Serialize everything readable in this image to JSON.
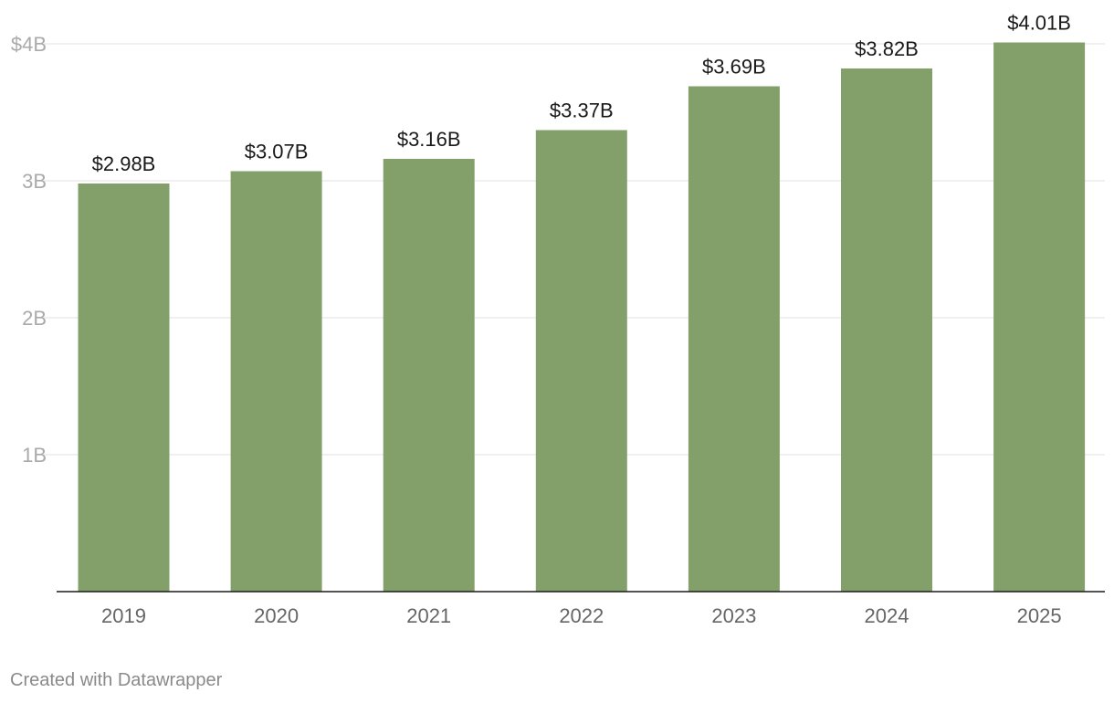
{
  "chart_data": {
    "type": "bar",
    "title": "",
    "xlabel": "",
    "ylabel": "",
    "categories": [
      "2019",
      "2020",
      "2021",
      "2022",
      "2023",
      "2024",
      "2025"
    ],
    "values": [
      2.98,
      3.07,
      3.16,
      3.37,
      3.69,
      3.82,
      4.01
    ],
    "value_labels": [
      "$2.98B",
      "$3.07B",
      "$3.16B",
      "$3.37B",
      "$3.69B",
      "$3.82B",
      "$4.01B"
    ],
    "ylim": [
      0,
      4
    ],
    "yticks": [
      1,
      2,
      3,
      4
    ],
    "ytick_labels": [
      "1B",
      "2B",
      "3B",
      "$4B"
    ],
    "grid": true,
    "bar_color": "#84a06a"
  },
  "footer": {
    "credit": "Created with Datawrapper"
  }
}
